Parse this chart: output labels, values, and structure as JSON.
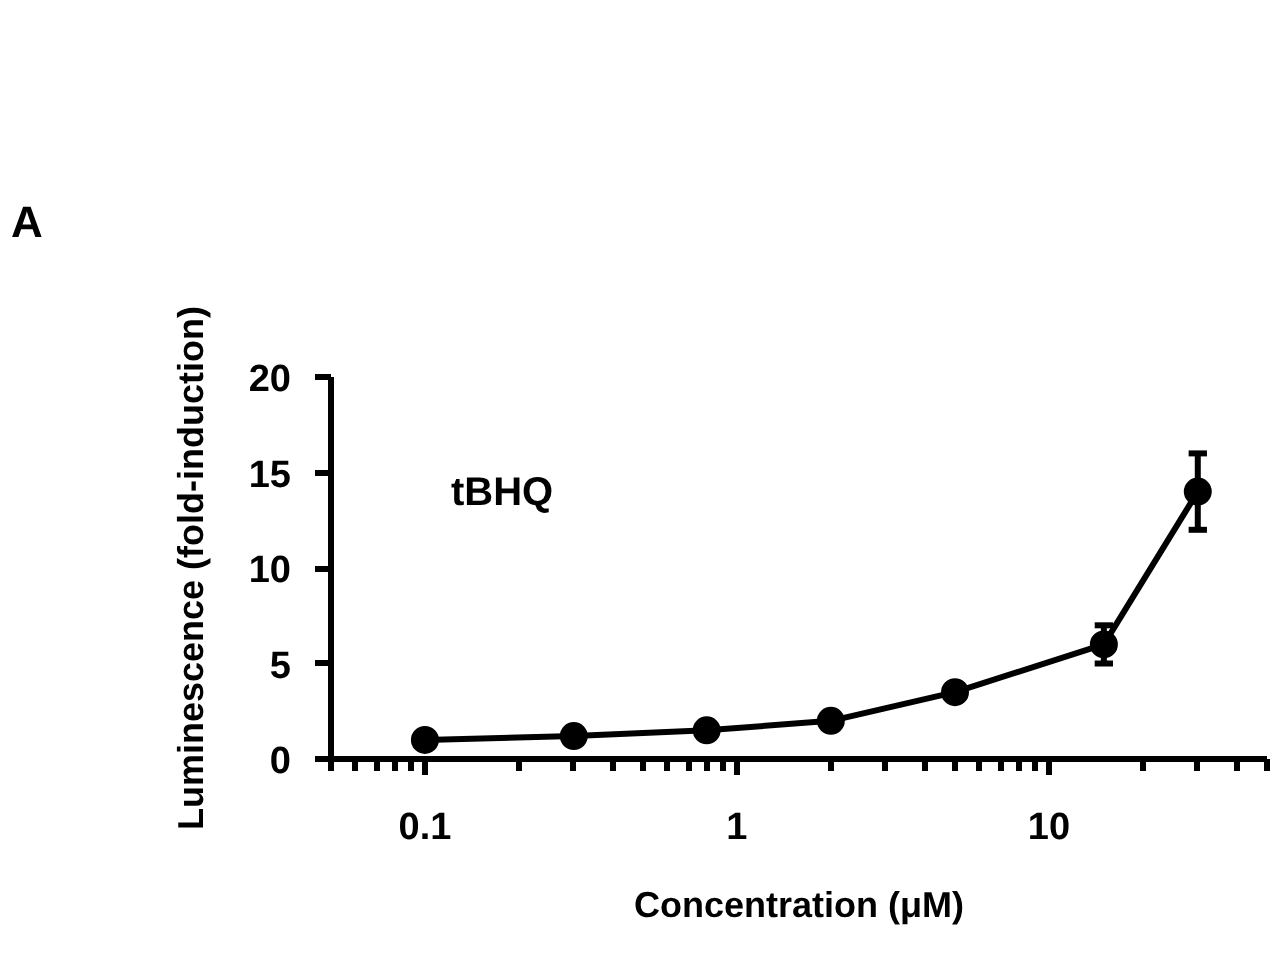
{
  "chart_data": {
    "type": "line",
    "xlabel": "Concentration (μM)",
    "ylabel": "Luminescence (fold-induction)",
    "annotations": [
      "A",
      "tBHQ"
    ],
    "x": [
      0.1,
      0.3,
      0.8,
      2,
      5,
      15,
      30
    ],
    "series": [
      {
        "color": "#000000",
        "values": [
          1,
          1.2,
          1.5,
          2,
          3.5,
          6,
          14
        ],
        "errors": [
          null,
          null,
          null,
          null,
          null,
          [
            5,
            7
          ],
          [
            12,
            16
          ]
        ]
      }
    ],
    "log": "x",
    "xlim": [
      0.05,
      50
    ],
    "xticks": [
      0.1,
      1,
      10
    ],
    "ylim": [
      0,
      20
    ],
    "yticks": [
      0,
      5,
      10,
      15,
      20
    ],
    "grid": false,
    "marker": "circle",
    "line_style": "solid"
  }
}
